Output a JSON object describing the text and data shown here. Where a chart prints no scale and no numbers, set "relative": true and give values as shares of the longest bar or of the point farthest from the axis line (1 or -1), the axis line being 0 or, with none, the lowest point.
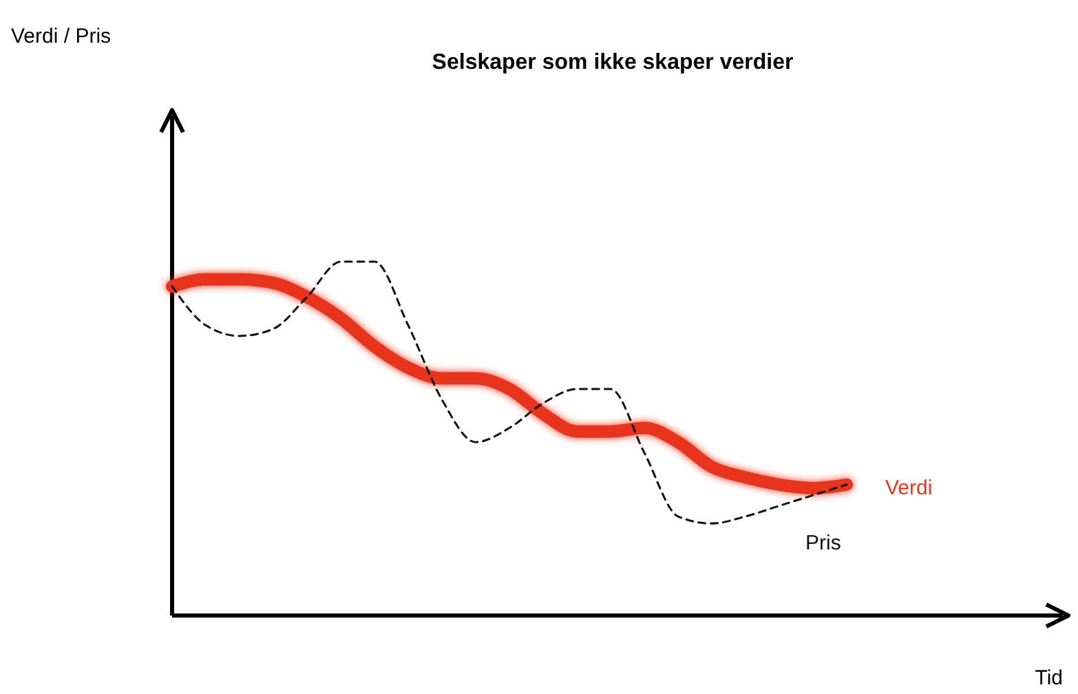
{
  "chart_data": {
    "type": "line",
    "title": "Selskaper som ikke skaper verdier",
    "annotations": [
      "Verdi / Pris",
      "Tid"
    ],
    "relative": true,
    "categories": [
      null,
      null,
      null,
      null,
      null,
      null,
      null,
      null,
      null,
      null,
      null,
      null,
      null,
      null,
      null,
      null,
      null,
      null,
      null,
      null,
      null
    ],
    "series": [
      {
        "name": "Verdi",
        "color": "#e8341c",
        "line_style": "solid",
        "values": [
          0.93,
          0.95,
          0.95,
          0.94,
          0.9,
          0.84,
          0.76,
          0.7,
          0.67,
          0.67,
          0.64,
          0.57,
          0.52,
          0.52,
          0.53,
          0.49,
          0.42,
          0.39,
          0.37,
          0.36,
          0.37
        ]
      },
      {
        "name": "Pris",
        "color": "#111111",
        "line_style": "dashed",
        "values": [
          0.93,
          0.82,
          0.79,
          0.81,
          0.9,
          1,
          1,
          0.82,
          0.61,
          0.49,
          0.53,
          0.6,
          0.64,
          0.64,
          0.46,
          0.28,
          0.26,
          0.28,
          0.31,
          0.34,
          0.37
        ]
      }
    ]
  }
}
